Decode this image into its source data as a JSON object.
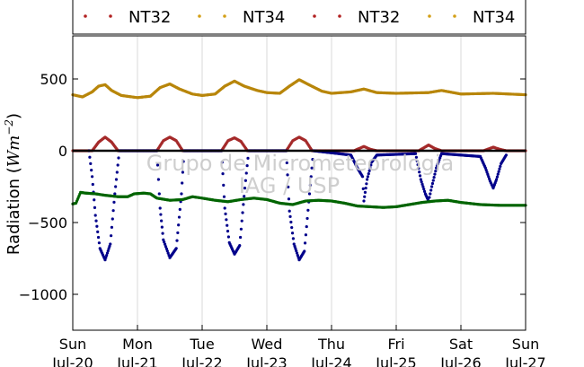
{
  "chart_data": {
    "type": "scatter",
    "ylabel_prefix": "Radiation (",
    "ylabel_math": "Wm",
    "ylabel_exp": "−2",
    "ylabel_suffix": ")",
    "ylim": [
      -1250,
      800
    ],
    "xlim": [
      0,
      7
    ],
    "yticks": [
      {
        "value": 500,
        "label": "500"
      },
      {
        "value": 0,
        "label": "0"
      },
      {
        "value": -500,
        "label": "−500"
      },
      {
        "value": -1000,
        "label": "−1000"
      }
    ],
    "xticks": [
      {
        "value": 0,
        "day": "Sun",
        "date": "Jul-20"
      },
      {
        "value": 1,
        "day": "Mon",
        "date": "Jul-21"
      },
      {
        "value": 2,
        "day": "Tue",
        "date": "Jul-22"
      },
      {
        "value": 3,
        "day": "Wed",
        "date": "Jul-23"
      },
      {
        "value": 4,
        "day": "Thu",
        "date": "Jul-24"
      },
      {
        "value": 5,
        "day": "Fri",
        "date": "Jul-25"
      },
      {
        "value": 6,
        "day": "Sat",
        "date": "Jul-26"
      },
      {
        "value": 7,
        "day": "Sun",
        "date": "Jul-27"
      }
    ],
    "grid": true,
    "legend_position": "top",
    "legend": [
      {
        "name": "NT32",
        "color": "#b22222"
      },
      {
        "name": "NT34",
        "color": "#d4a017"
      },
      {
        "name": "NT32",
        "color": "#b22222"
      },
      {
        "name": "NT34",
        "color": "#d4a017"
      }
    ],
    "watermark": [
      "Grupo de Micrometeorologia",
      "IAG / USP"
    ],
    "series": [
      {
        "color": "#b8860b",
        "points": [
          [
            0,
            390
          ],
          [
            0.15,
            375
          ],
          [
            0.3,
            410
          ],
          [
            0.4,
            450
          ],
          [
            0.5,
            460
          ],
          [
            0.6,
            420
          ],
          [
            0.75,
            385
          ],
          [
            1.0,
            370
          ],
          [
            1.2,
            380
          ],
          [
            1.35,
            440
          ],
          [
            1.5,
            465
          ],
          [
            1.65,
            430
          ],
          [
            1.85,
            395
          ],
          [
            2.0,
            385
          ],
          [
            2.2,
            395
          ],
          [
            2.35,
            450
          ],
          [
            2.5,
            485
          ],
          [
            2.65,
            450
          ],
          [
            2.85,
            420
          ],
          [
            3.0,
            405
          ],
          [
            3.2,
            400
          ],
          [
            3.35,
            450
          ],
          [
            3.5,
            495
          ],
          [
            3.65,
            460
          ],
          [
            3.85,
            415
          ],
          [
            4.0,
            400
          ],
          [
            4.3,
            410
          ],
          [
            4.5,
            430
          ],
          [
            4.7,
            405
          ],
          [
            5.0,
            400
          ],
          [
            5.5,
            405
          ],
          [
            5.7,
            420
          ],
          [
            6.0,
            395
          ],
          [
            6.5,
            400
          ],
          [
            7.0,
            390
          ]
        ]
      },
      {
        "color": "#a52a2a",
        "points": [
          [
            0,
            0
          ],
          [
            0.3,
            0
          ],
          [
            0.4,
            60
          ],
          [
            0.5,
            95
          ],
          [
            0.6,
            60
          ],
          [
            0.7,
            0
          ],
          [
            1.0,
            0
          ],
          [
            1.3,
            0
          ],
          [
            1.4,
            70
          ],
          [
            1.5,
            95
          ],
          [
            1.6,
            70
          ],
          [
            1.7,
            0
          ],
          [
            2.0,
            0
          ],
          [
            2.3,
            0
          ],
          [
            2.4,
            70
          ],
          [
            2.5,
            90
          ],
          [
            2.6,
            65
          ],
          [
            2.7,
            0
          ],
          [
            3.0,
            0
          ],
          [
            3.3,
            0
          ],
          [
            3.4,
            70
          ],
          [
            3.5,
            95
          ],
          [
            3.6,
            70
          ],
          [
            3.7,
            0
          ],
          [
            4.0,
            0
          ],
          [
            4.35,
            0
          ],
          [
            4.5,
            30
          ],
          [
            4.6,
            10
          ],
          [
            4.7,
            0
          ],
          [
            5.0,
            0
          ],
          [
            5.35,
            0
          ],
          [
            5.5,
            40
          ],
          [
            5.6,
            15
          ],
          [
            5.7,
            0
          ],
          [
            6.0,
            0
          ],
          [
            6.35,
            0
          ],
          [
            6.5,
            25
          ],
          [
            6.6,
            10
          ],
          [
            6.7,
            0
          ],
          [
            7.0,
            0
          ]
        ]
      },
      {
        "color": "#00008b",
        "points": [
          [
            0.25,
            0
          ],
          [
            0.3,
            -180
          ],
          [
            0.35,
            -450
          ],
          [
            0.42,
            -680
          ],
          [
            0.5,
            -760
          ],
          [
            0.58,
            -650
          ],
          [
            0.65,
            -300
          ],
          [
            0.72,
            0
          ],
          [
            1.3,
            0
          ],
          [
            1.35,
            -400
          ],
          [
            1.4,
            -620
          ],
          [
            1.5,
            -745
          ],
          [
            1.6,
            -680
          ],
          [
            1.68,
            -300
          ],
          [
            1.72,
            0
          ],
          [
            2.3,
            0
          ],
          [
            2.35,
            -400
          ],
          [
            2.42,
            -640
          ],
          [
            2.5,
            -720
          ],
          [
            2.58,
            -660
          ],
          [
            2.66,
            -260
          ],
          [
            2.72,
            0
          ],
          [
            3.3,
            0
          ],
          [
            3.35,
            -420
          ],
          [
            3.42,
            -650
          ],
          [
            3.5,
            -760
          ],
          [
            3.58,
            -700
          ],
          [
            3.66,
            -300
          ],
          [
            3.72,
            0
          ],
          [
            4.3,
            -30
          ],
          [
            4.4,
            -120
          ],
          [
            4.48,
            -180
          ],
          [
            4.5,
            -350
          ],
          [
            4.55,
            -200
          ],
          [
            4.62,
            -80
          ],
          [
            4.7,
            -30
          ],
          [
            5.3,
            -20
          ],
          [
            5.38,
            -200
          ],
          [
            5.45,
            -300
          ],
          [
            5.5,
            -350
          ],
          [
            5.55,
            -250
          ],
          [
            5.62,
            -120
          ],
          [
            5.7,
            -20
          ],
          [
            6.3,
            -40
          ],
          [
            6.38,
            -120
          ],
          [
            6.45,
            -210
          ],
          [
            6.5,
            -260
          ],
          [
            6.55,
            -200
          ],
          [
            6.62,
            -90
          ],
          [
            6.7,
            -30
          ]
        ]
      },
      {
        "color": "#006400",
        "points": [
          [
            0,
            -370
          ],
          [
            0.05,
            -365
          ],
          [
            0.12,
            -290
          ],
          [
            0.2,
            -295
          ],
          [
            0.35,
            -300
          ],
          [
            0.5,
            -310
          ],
          [
            0.7,
            -320
          ],
          [
            0.85,
            -320
          ],
          [
            0.95,
            -300
          ],
          [
            1.1,
            -295
          ],
          [
            1.2,
            -300
          ],
          [
            1.3,
            -330
          ],
          [
            1.5,
            -345
          ],
          [
            1.7,
            -340
          ],
          [
            1.85,
            -320
          ],
          [
            2.0,
            -330
          ],
          [
            2.2,
            -345
          ],
          [
            2.4,
            -355
          ],
          [
            2.6,
            -340
          ],
          [
            2.8,
            -330
          ],
          [
            3.0,
            -340
          ],
          [
            3.2,
            -365
          ],
          [
            3.4,
            -375
          ],
          [
            3.6,
            -350
          ],
          [
            3.8,
            -345
          ],
          [
            4.0,
            -350
          ],
          [
            4.2,
            -365
          ],
          [
            4.4,
            -385
          ],
          [
            4.6,
            -390
          ],
          [
            4.8,
            -395
          ],
          [
            5.0,
            -390
          ],
          [
            5.2,
            -375
          ],
          [
            5.4,
            -360
          ],
          [
            5.6,
            -350
          ],
          [
            5.8,
            -345
          ],
          [
            6.0,
            -360
          ],
          [
            6.3,
            -375
          ],
          [
            6.6,
            -380
          ],
          [
            7.0,
            -380
          ]
        ]
      },
      {
        "color": "#000000",
        "points": [
          [
            0,
            0
          ],
          [
            7,
            0
          ]
        ]
      }
    ]
  }
}
